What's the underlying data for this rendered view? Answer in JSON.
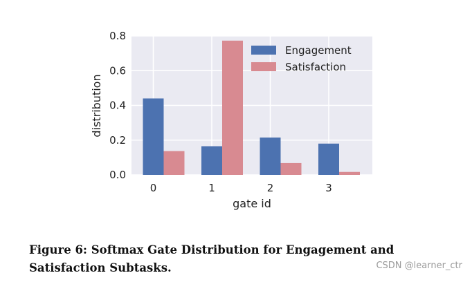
{
  "chart_data": {
    "type": "bar",
    "categories": [
      "0",
      "1",
      "2",
      "3"
    ],
    "series": [
      {
        "name": "Engagement",
        "color": "#4c72b0",
        "values": [
          0.44,
          0.165,
          0.215,
          0.18
        ]
      },
      {
        "name": "Satisfaction",
        "color": "#d88a91",
        "values": [
          0.137,
          0.773,
          0.068,
          0.017
        ]
      }
    ],
    "xlabel": "gate id",
    "ylabel": "distribution",
    "ylim": [
      0,
      0.8
    ],
    "yticks": [
      "0.0",
      "0.2",
      "0.4",
      "0.6",
      "0.8"
    ],
    "grid": true,
    "legend_position": "top-right",
    "plot_background": "#eaeaf2"
  },
  "caption": "Figure 6: Softmax Gate Distribution for Engagement and Satisfaction Subtasks.",
  "watermark": "CSDN @learner_ctr"
}
